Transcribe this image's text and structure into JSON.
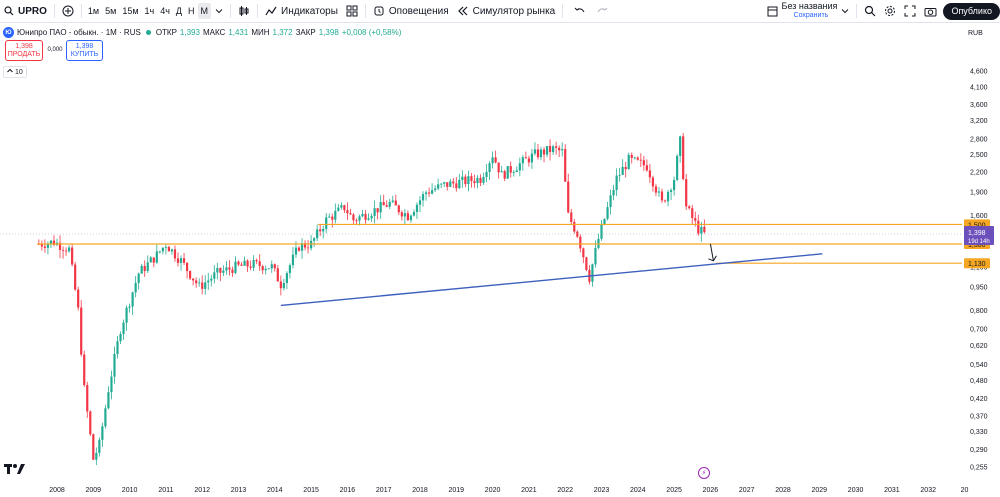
{
  "toolbar": {
    "symbol": "UPRO",
    "timeframes": [
      "1м",
      "5м",
      "15м",
      "1ч",
      "4ч",
      "Д",
      "Н",
      "М"
    ],
    "active_timeframe": "М",
    "indicators_label": "Индикаторы",
    "alerts_label": "Оповещения",
    "replay_label": "Симулятор рынка",
    "layout_name": "Без названия",
    "layout_status": "Сохранить",
    "publish_label": "Опублико"
  },
  "legend": {
    "logo": "Ю",
    "title": "Юнипро ПАО - обыкн. · 1M · RUS",
    "open_label": "ОТКР",
    "open": "1,393",
    "high_label": "МАКС",
    "high": "1,431",
    "low_label": "МИН",
    "low": "1,372",
    "close_label": "ЗАКР",
    "close": "1,398",
    "change": "+0,008 (+0,58%)"
  },
  "trade": {
    "sell_price": "1,398",
    "sell_label": "ПРОДАТЬ",
    "spread": "0,000",
    "buy_price": "1,398",
    "buy_label": "КУПИТЬ"
  },
  "indicator_count": "10",
  "currency": "RUB",
  "colors": {
    "up": "#22ab94",
    "down": "#f23645",
    "level": "#f5a623",
    "trend": "#3d5fbf",
    "price_tag": "#6b4fbb"
  },
  "chart_data": {
    "type": "candlestick",
    "y_scale": "log",
    "y_ticks": [
      "4,600",
      "4,100",
      "3,600",
      "3,200",
      "2,800",
      "2,500",
      "2,200",
      "1,900",
      "1,600",
      "1,100",
      "0,950",
      "0,800",
      "0,700",
      "0,620",
      "0,540",
      "0,480",
      "0,420",
      "0,370",
      "0,330",
      "0,290",
      "0,255"
    ],
    "x_ticks": [
      "2008",
      "2009",
      "2010",
      "2011",
      "2012",
      "2013",
      "2014",
      "2015",
      "2016",
      "2017",
      "2018",
      "2019",
      "2020",
      "2021",
      "2022",
      "2023",
      "2024",
      "2025",
      "2026",
      "2027",
      "2028",
      "2029",
      "2030",
      "2031",
      "2032",
      "20"
    ],
    "horizontal_levels": [
      {
        "value": 1.5,
        "label": "1,500"
      },
      {
        "value": 1.3,
        "label": "1,300"
      },
      {
        "value": 1.13,
        "label": "1,130"
      }
    ],
    "current_price": {
      "value": 1.398,
      "label": "1,398",
      "countdown": "19d 14h"
    },
    "trendline": {
      "start": {
        "date": "2014-03",
        "price": 0.83
      },
      "end": {
        "date": "2029-02",
        "price": 1.21
      }
    },
    "arrow_annotation": {
      "date": "2026-02",
      "from_price": 1.3,
      "to_price": 1.15
    },
    "price_path": [
      {
        "date": "2007-07",
        "price": 1.3
      },
      {
        "date": "2007-12",
        "price": 1.32
      },
      {
        "date": "2008-05",
        "price": 1.25
      },
      {
        "date": "2008-08",
        "price": 0.8
      },
      {
        "date": "2008-10",
        "price": 0.45
      },
      {
        "date": "2009-01",
        "price": 0.27
      },
      {
        "date": "2009-03",
        "price": 0.3
      },
      {
        "date": "2009-06",
        "price": 0.45
      },
      {
        "date": "2009-10",
        "price": 0.7
      },
      {
        "date": "2010-04",
        "price": 1.05
      },
      {
        "date": "2010-10",
        "price": 1.2
      },
      {
        "date": "2011-01",
        "price": 1.3
      },
      {
        "date": "2011-06",
        "price": 1.15
      },
      {
        "date": "2011-12",
        "price": 0.95
      },
      {
        "date": "2012-06",
        "price": 1.05
      },
      {
        "date": "2012-12",
        "price": 1.1
      },
      {
        "date": "2013-06",
        "price": 1.12
      },
      {
        "date": "2013-12",
        "price": 1.1
      },
      {
        "date": "2014-03",
        "price": 0.97
      },
      {
        "date": "2014-09",
        "price": 1.28
      },
      {
        "date": "2015-01",
        "price": 1.3
      },
      {
        "date": "2015-06",
        "price": 1.55
      },
      {
        "date": "2015-12",
        "price": 1.7
      },
      {
        "date": "2016-03",
        "price": 1.55
      },
      {
        "date": "2016-09",
        "price": 1.65
      },
      {
        "date": "2017-03",
        "price": 1.75
      },
      {
        "date": "2017-09",
        "price": 1.6
      },
      {
        "date": "2018-03",
        "price": 1.9
      },
      {
        "date": "2018-09",
        "price": 2.0
      },
      {
        "date": "2019-03",
        "price": 2.05
      },
      {
        "date": "2019-09",
        "price": 2.1
      },
      {
        "date": "2020-01",
        "price": 2.5
      },
      {
        "date": "2020-04",
        "price": 2.15
      },
      {
        "date": "2020-09",
        "price": 2.3
      },
      {
        "date": "2021-03",
        "price": 2.5
      },
      {
        "date": "2021-09",
        "price": 2.6
      },
      {
        "date": "2021-12",
        "price": 2.55
      },
      {
        "date": "2022-02",
        "price": 1.6
      },
      {
        "date": "2022-05",
        "price": 1.4
      },
      {
        "date": "2022-09",
        "price": 1.02
      },
      {
        "date": "2022-12",
        "price": 1.35
      },
      {
        "date": "2023-06",
        "price": 2.1
      },
      {
        "date": "2023-10",
        "price": 2.4
      },
      {
        "date": "2024-04",
        "price": 2.3
      },
      {
        "date": "2024-09",
        "price": 1.75
      },
      {
        "date": "2025-01",
        "price": 2.1
      },
      {
        "date": "2025-03",
        "price": 2.75
      },
      {
        "date": "2025-05",
        "price": 1.7
      },
      {
        "date": "2025-09",
        "price": 1.45
      },
      {
        "date": "2025-11",
        "price": 1.398
      }
    ]
  }
}
